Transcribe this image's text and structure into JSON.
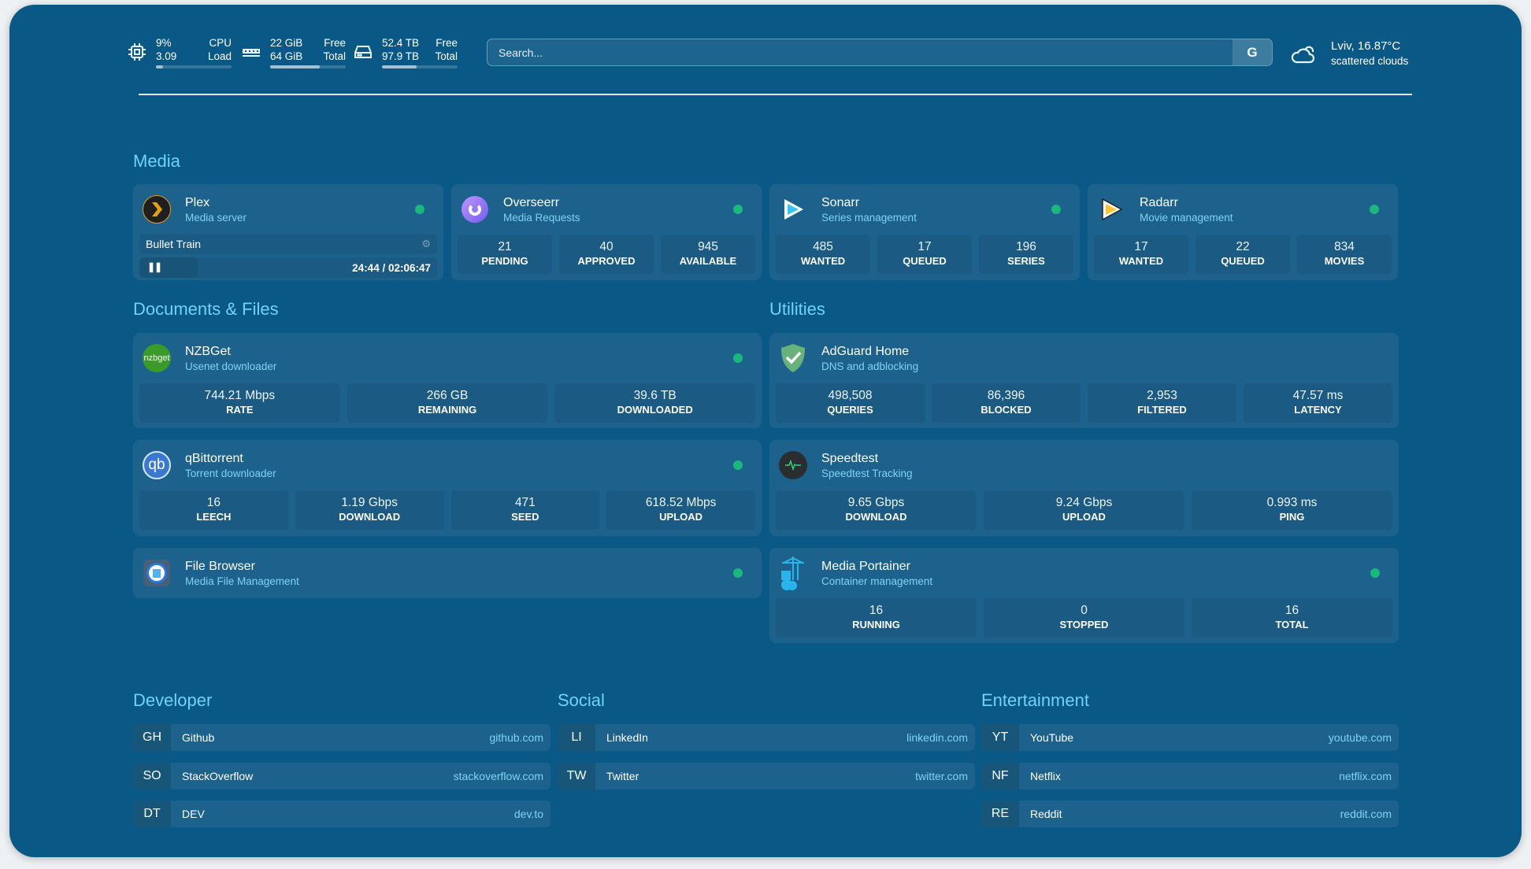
{
  "header": {
    "cpu": {
      "icon": "cpu-icon",
      "value1": "9%",
      "value2": "3.09",
      "label1": "CPU",
      "label2": "Load",
      "usage_fraction": 0.09
    },
    "memory": {
      "icon": "memory-icon",
      "value1": "22 GiB",
      "value2": "64 GiB",
      "label1": "Free",
      "label2": "Total",
      "usage_fraction": 0.66
    },
    "disk": {
      "icon": "disk-icon",
      "value1": "52.4 TB",
      "value2": "97.9 TB",
      "label1": "Free",
      "label2": "Total",
      "usage_fraction": 0.46
    },
    "search": {
      "placeholder": "Search...",
      "engine_label": "G"
    },
    "weather": {
      "icon": "cloud-icon",
      "location_temp": "Lviv, 16.87°C",
      "condition": "scattered clouds"
    }
  },
  "colors": {
    "background": "#0a5886",
    "card": "#1d628c",
    "accent": "#6fd3f7",
    "status_ok": "#19b97c"
  },
  "media": {
    "title": "Media",
    "plex": {
      "name": "Plex",
      "desc": "Media server",
      "icon": "plex-icon",
      "now_playing": "Bullet Train",
      "time": "24:44 / 02:06:47",
      "progress_fraction": 0.195,
      "state": "pause-icon"
    },
    "services": [
      {
        "name": "Overseerr",
        "desc": "Media Requests",
        "icon": "overseerr-icon",
        "stats": [
          {
            "v": "21",
            "l": "PENDING"
          },
          {
            "v": "40",
            "l": "APPROVED"
          },
          {
            "v": "945",
            "l": "AVAILABLE"
          }
        ]
      },
      {
        "name": "Sonarr",
        "desc": "Series management",
        "icon": "sonarr-icon",
        "stats": [
          {
            "v": "485",
            "l": "WANTED"
          },
          {
            "v": "17",
            "l": "QUEUED"
          },
          {
            "v": "196",
            "l": "SERIES"
          }
        ]
      },
      {
        "name": "Radarr",
        "desc": "Movie management",
        "icon": "radarr-icon",
        "stats": [
          {
            "v": "17",
            "l": "WANTED"
          },
          {
            "v": "22",
            "l": "QUEUED"
          },
          {
            "v": "834",
            "l": "MOVIES"
          }
        ]
      }
    ]
  },
  "documents": {
    "title": "Documents & Files",
    "services": [
      {
        "name": "NZBGet",
        "desc": "Usenet downloader",
        "icon": "nzbget-icon",
        "icon_text": "nzbget",
        "stats": [
          {
            "v": "744.21 Mbps",
            "l": "RATE"
          },
          {
            "v": "266 GB",
            "l": "REMAINING"
          },
          {
            "v": "39.6 TB",
            "l": "DOWNLOADED"
          }
        ]
      },
      {
        "name": "qBittorrent",
        "desc": "Torrent downloader",
        "icon": "qbittorrent-icon",
        "icon_text": "qb",
        "stats": [
          {
            "v": "16",
            "l": "LEECH"
          },
          {
            "v": "1.19 Gbps",
            "l": "DOWNLOAD"
          },
          {
            "v": "471",
            "l": "SEED"
          },
          {
            "v": "618.52 Mbps",
            "l": "UPLOAD"
          }
        ]
      },
      {
        "name": "File Browser",
        "desc": "Media File Management",
        "icon": "filebrowser-icon",
        "stats": []
      }
    ]
  },
  "utilities": {
    "title": "Utilities",
    "services": [
      {
        "name": "AdGuard Home",
        "desc": "DNS and adblocking",
        "icon": "adguard-icon",
        "stats": [
          {
            "v": "498,508",
            "l": "QUERIES"
          },
          {
            "v": "86,396",
            "l": "BLOCKED"
          },
          {
            "v": "2,953",
            "l": "FILTERED"
          },
          {
            "v": "47.57 ms",
            "l": "LATENCY"
          }
        ]
      },
      {
        "name": "Speedtest",
        "desc": "Speedtest Tracking",
        "icon": "speedtest-icon",
        "stats": [
          {
            "v": "9.65 Gbps",
            "l": "DOWNLOAD"
          },
          {
            "v": "9.24 Gbps",
            "l": "UPLOAD"
          },
          {
            "v": "0.993 ms",
            "l": "PING"
          }
        ]
      },
      {
        "name": "Media Portainer",
        "desc": "Container management",
        "icon": "portainer-icon",
        "stats": [
          {
            "v": "16",
            "l": "RUNNING"
          },
          {
            "v": "0",
            "l": "STOPPED"
          },
          {
            "v": "16",
            "l": "TOTAL"
          }
        ]
      }
    ]
  },
  "bookmarks": [
    {
      "title": "Developer",
      "items": [
        {
          "abbr": "GH",
          "name": "Github",
          "url": "github.com"
        },
        {
          "abbr": "SO",
          "name": "StackOverflow",
          "url": "stackoverflow.com"
        },
        {
          "abbr": "DT",
          "name": "DEV",
          "url": "dev.to"
        }
      ]
    },
    {
      "title": "Social",
      "items": [
        {
          "abbr": "LI",
          "name": "LinkedIn",
          "url": "linkedin.com"
        },
        {
          "abbr": "TW",
          "name": "Twitter",
          "url": "twitter.com"
        }
      ]
    },
    {
      "title": "Entertainment",
      "items": [
        {
          "abbr": "YT",
          "name": "YouTube",
          "url": "youtube.com"
        },
        {
          "abbr": "NF",
          "name": "Netflix",
          "url": "netflix.com"
        },
        {
          "abbr": "RE",
          "name": "Reddit",
          "url": "reddit.com"
        }
      ]
    }
  ]
}
